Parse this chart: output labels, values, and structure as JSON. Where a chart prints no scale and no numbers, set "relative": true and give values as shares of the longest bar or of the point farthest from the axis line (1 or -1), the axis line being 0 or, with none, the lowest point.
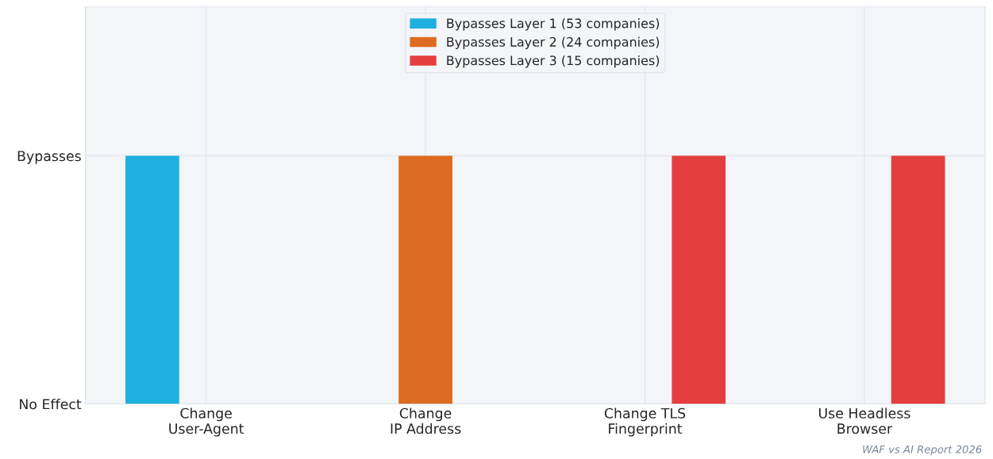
{
  "chart_data": {
    "type": "bar",
    "categories": [
      "Change\nUser-Agent",
      "Change\nIP Address",
      "Change TLS\nFingerprint",
      "Use Headless\nBrowser"
    ],
    "series": [
      {
        "name": "Bypasses Layer 1 (53 companies)",
        "color": "#1eb0de",
        "values": [
          1,
          0,
          0,
          0
        ]
      },
      {
        "name": "Bypasses Layer 2 (24 companies)",
        "color": "#dd6b20",
        "values": [
          0,
          1,
          0,
          0
        ]
      },
      {
        "name": "Bypasses Layer 3 (15 companies)",
        "color": "#e53e3e",
        "values": [
          0,
          0,
          1,
          1
        ]
      }
    ],
    "relative": true,
    "grid": true,
    "legend": "top",
    "annotations": [
      "No Effect",
      "Bypasses",
      "WAF vs AI Report 2026"
    ]
  }
}
